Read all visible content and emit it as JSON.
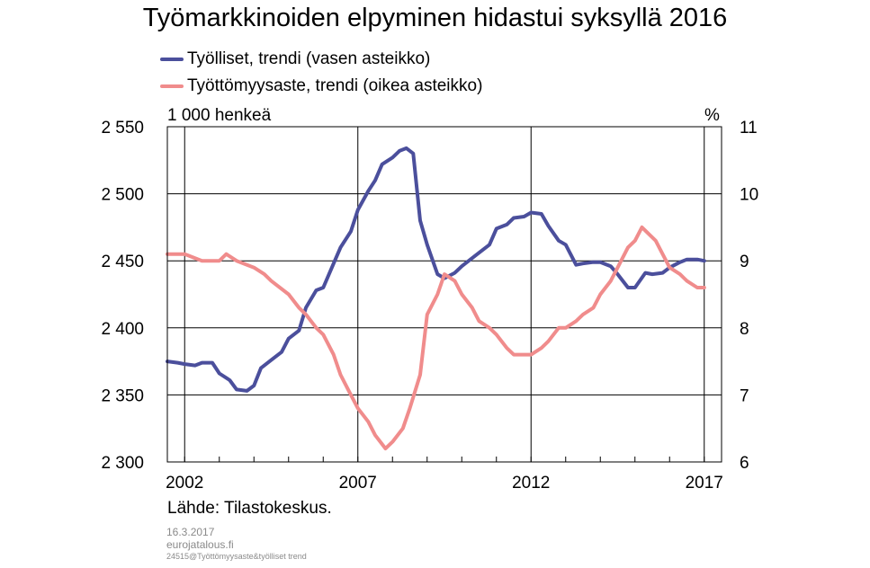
{
  "chart_data": {
    "type": "line",
    "title": "Työmarkkinoiden elpyminen hidastui syksyllä 2016",
    "left_axis_unit": "1 000 henkeä",
    "right_axis_unit": "%",
    "y_left_lim": [
      2300,
      2550
    ],
    "y_left_ticks": [
      "2 300",
      "2 350",
      "2 400",
      "2 450",
      "2 500",
      "2 550"
    ],
    "y_right_lim": [
      6,
      11
    ],
    "y_right_ticks": [
      "6",
      "7",
      "8",
      "9",
      "10",
      "11"
    ],
    "x_lim": [
      2001.5,
      2017.5
    ],
    "x_tick_labels": [
      "2002",
      "2007",
      "2012",
      "2017"
    ],
    "grid": true,
    "legend_position": "top-left",
    "series": [
      {
        "name": "Työlliset, trendi (vasen asteikko)",
        "axis": "left",
        "color": "#4b4f9c",
        "x": [
          2001.5,
          2001.8,
          2002.0,
          2002.3,
          2002.5,
          2002.8,
          2003.0,
          2003.3,
          2003.5,
          2003.8,
          2004.0,
          2004.2,
          2004.5,
          2004.8,
          2005.0,
          2005.3,
          2005.5,
          2005.8,
          2006.0,
          2006.3,
          2006.5,
          2006.8,
          2007.0,
          2007.3,
          2007.5,
          2007.7,
          2008.0,
          2008.2,
          2008.4,
          2008.6,
          2008.8,
          2009.0,
          2009.3,
          2009.5,
          2009.8,
          2010.0,
          2010.3,
          2010.5,
          2010.8,
          2011.0,
          2011.3,
          2011.5,
          2011.8,
          2012.0,
          2012.3,
          2012.5,
          2012.8,
          2013.0,
          2013.3,
          2013.5,
          2013.8,
          2014.0,
          2014.3,
          2014.5,
          2014.8,
          2015.0,
          2015.3,
          2015.5,
          2015.8,
          2016.0,
          2016.3,
          2016.5,
          2016.8,
          2017.0
        ],
        "values": [
          2375,
          2374,
          2373,
          2372,
          2374,
          2374,
          2366,
          2361,
          2354,
          2353,
          2357,
          2370,
          2376,
          2382,
          2392,
          2398,
          2415,
          2428,
          2430,
          2448,
          2460,
          2472,
          2488,
          2502,
          2510,
          2522,
          2527,
          2532,
          2534,
          2530,
          2480,
          2462,
          2440,
          2437,
          2441,
          2446,
          2452,
          2456,
          2462,
          2474,
          2477,
          2482,
          2483,
          2486,
          2485,
          2476,
          2465,
          2462,
          2447,
          2448,
          2449,
          2449,
          2446,
          2440,
          2430,
          2430,
          2441,
          2440,
          2441,
          2445,
          2449,
          2451,
          2451,
          2450
        ]
      },
      {
        "name": "Työttömyysaste, trendi (oikea asteikko)",
        "axis": "right",
        "color": "#f08c8c",
        "x": [
          2001.5,
          2002.0,
          2002.5,
          2003.0,
          2003.2,
          2003.5,
          2004.0,
          2004.3,
          2004.5,
          2005.0,
          2005.3,
          2005.5,
          2005.8,
          2006.0,
          2006.3,
          2006.5,
          2006.8,
          2007.0,
          2007.3,
          2007.5,
          2007.8,
          2008.0,
          2008.3,
          2008.5,
          2008.8,
          2009.0,
          2009.3,
          2009.5,
          2009.8,
          2010.0,
          2010.3,
          2010.5,
          2010.8,
          2011.0,
          2011.3,
          2011.5,
          2011.8,
          2012.0,
          2012.3,
          2012.5,
          2012.8,
          2013.0,
          2013.3,
          2013.5,
          2013.8,
          2014.0,
          2014.3,
          2014.5,
          2014.8,
          2015.0,
          2015.2,
          2015.4,
          2015.6,
          2015.8,
          2016.0,
          2016.3,
          2016.5,
          2016.8,
          2017.0
        ],
        "values": [
          9.1,
          9.1,
          9.0,
          9.0,
          9.1,
          9.0,
          8.9,
          8.8,
          8.7,
          8.5,
          8.3,
          8.2,
          8.0,
          7.9,
          7.6,
          7.3,
          7.0,
          6.8,
          6.6,
          6.4,
          6.2,
          6.3,
          6.5,
          6.8,
          7.3,
          8.2,
          8.5,
          8.8,
          8.7,
          8.5,
          8.3,
          8.1,
          8.0,
          7.9,
          7.7,
          7.6,
          7.6,
          7.6,
          7.7,
          7.8,
          8.0,
          8.0,
          8.1,
          8.2,
          8.3,
          8.5,
          8.7,
          8.9,
          9.2,
          9.3,
          9.5,
          9.4,
          9.3,
          9.1,
          8.9,
          8.8,
          8.7,
          8.6,
          8.6
        ]
      }
    ]
  },
  "source": "Lähde:  Tilastokeskus.",
  "footer": {
    "date": "16.3.2017",
    "site": "eurojatalous.fi",
    "code": "24515@Työttömyysaste&työlliset trend"
  }
}
